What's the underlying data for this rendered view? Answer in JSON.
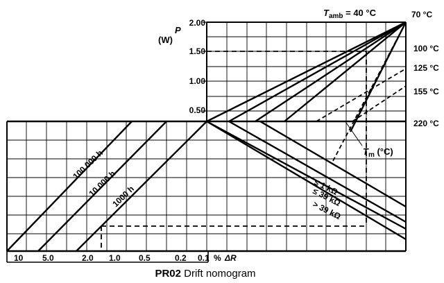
{
  "chart_data": {
    "type": "line",
    "title_bold": "PR02",
    "title_rest": " Drift nomogram",
    "upper_panel": {
      "ylabel_symbol": "P",
      "ylabel_unit": "(W)",
      "yticks": [
        "2.00",
        "1.50",
        "1.00",
        "0.50"
      ],
      "ylim": [
        0,
        2.0
      ],
      "tamb_label": "T",
      "tamb_sub": "amb",
      "tamb_value": " = 40 °C",
      "derating_lines": [
        {
          "ambient": "40 °C",
          "p_start": 0,
          "p_end": 2.0
        },
        {
          "ambient": "70 °C",
          "p_start": 0,
          "p_end": 2.0
        },
        {
          "ambient": "100 °C",
          "p_start": 0,
          "p_end": 2.0
        },
        {
          "ambient": "125 °C",
          "p_start": 0,
          "p_end": 2.0
        }
      ],
      "right_labels": [
        "70 °C",
        "100 °C",
        "125 °C",
        "155 °C",
        "220 °C"
      ]
    },
    "lower_panel": {
      "tm_label": "T",
      "tm_sub": "m",
      "tm_unit": " (°C)",
      "resistance_lines": [
        "≤ 1 kΩ",
        "≤ 39 kΩ",
        "> 39 kΩ"
      ],
      "hour_lines": [
        "100 000 h",
        "10 000 h",
        "1000 h"
      ],
      "xlabel_pct": "%",
      "xlabel_symbol": "ΔR",
      "xticks": [
        "10",
        "5.0",
        "2.0",
        "1.0",
        "0.5",
        "0.2",
        "0.1"
      ]
    },
    "example_path": {
      "power_w": 1.5,
      "drift_pct": 1.5
    },
    "grid": true
  }
}
